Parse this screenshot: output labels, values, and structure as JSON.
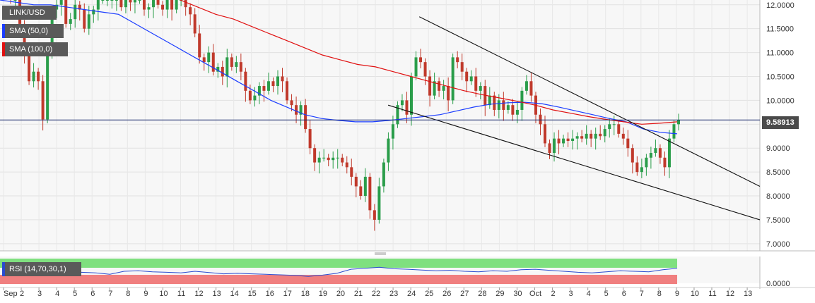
{
  "chart_data": [
    {
      "type": "candlestick",
      "symbol": "LINK/USD",
      "legend": [
        {
          "label": "LINK/USD",
          "color": "#5a5a5a"
        },
        {
          "label": "SMA (50,0)",
          "color": "#1a3cff"
        },
        {
          "label": "SMA (100,0)",
          "color": "#e01010"
        }
      ],
      "ylim": [
        6.85,
        12.1
      ],
      "yticks": [
        "12.0000",
        "11.5000",
        "11.0000",
        "10.5000",
        "10.0000",
        "9.5000",
        "9.0000",
        "8.5000",
        "8.0000",
        "7.5000",
        "7.0000"
      ],
      "ytick_values": [
        12.0,
        11.5,
        11.0,
        10.5,
        10.0,
        9.5,
        9.0,
        8.5,
        8.0,
        7.5,
        7.0
      ],
      "xticks": [
        "Sep",
        "2",
        "3",
        "4",
        "5",
        "6",
        "7",
        "8",
        "9",
        "10",
        "11",
        "12",
        "13",
        "14",
        "15",
        "16",
        "17",
        "18",
        "19",
        "20",
        "21",
        "22",
        "23",
        "24",
        "25",
        "26",
        "27",
        "28",
        "29",
        "30",
        "Oct",
        "2",
        "3",
        "4",
        "5",
        "6",
        "7",
        "8",
        "9",
        "10",
        "11",
        "12",
        "13"
      ],
      "current_price": 9.58913,
      "current_price_label": "9.58913",
      "close": [
        12.1,
        12.1,
        11.6,
        11.0,
        10.4,
        10.6,
        10.4,
        9.6,
        11.0,
        11.9,
        12.0,
        12.1,
        11.6,
        11.7,
        12.0,
        11.9,
        11.5,
        11.8,
        11.9,
        12.1,
        12.1,
        12.1,
        12.1,
        12.1,
        11.95,
        12.1,
        12.05,
        12.1,
        12.1,
        11.9,
        11.95,
        12.1,
        12.0,
        11.9,
        12.1,
        11.9,
        12.1,
        12.1,
        11.95,
        11.8,
        11.4,
        10.9,
        10.8,
        11.0,
        10.6,
        10.7,
        10.5,
        10.9,
        10.7,
        10.8,
        10.6,
        10.2,
        10.0,
        10.1,
        10.3,
        10.2,
        10.4,
        10.3,
        10.5,
        10.4,
        10.0,
        9.9,
        9.7,
        9.9,
        9.4,
        9.0,
        8.7,
        8.8,
        8.8,
        8.75,
        8.8,
        8.8,
        8.7,
        8.6,
        8.4,
        8.2,
        8.0,
        8.4,
        7.7,
        7.5,
        8.2,
        8.7,
        9.2,
        9.5,
        9.9,
        10.0,
        9.7,
        10.5,
        10.9,
        10.8,
        10.5,
        10.1,
        10.4,
        10.2,
        10.3,
        10.0,
        10.9,
        10.8,
        10.6,
        10.4,
        10.5,
        10.2,
        10.3,
        9.9,
        10.1,
        9.8,
        10.0,
        9.8,
        9.9,
        9.7,
        9.8,
        10.2,
        10.4,
        10.1,
        9.7,
        9.5,
        9.1,
        8.9,
        9.2,
        9.1,
        9.2,
        9.15,
        9.2,
        9.25,
        9.2,
        9.3,
        9.2,
        9.3,
        9.25,
        9.4,
        9.5,
        9.5,
        9.3,
        9.2,
        9.0,
        8.7,
        8.5,
        8.6,
        8.8,
        8.9,
        9.0,
        8.8,
        8.6,
        9.2,
        9.5,
        9.59
      ],
      "sma50": [
        12.1,
        12.05,
        12.0,
        12.0,
        11.95,
        11.9,
        11.85,
        11.8,
        11.6,
        11.4,
        11.2,
        11.0,
        10.8,
        10.6,
        10.4,
        10.2,
        10.0,
        9.85,
        9.7,
        9.62,
        9.58,
        9.55,
        9.55,
        9.58,
        9.62,
        9.66,
        9.7,
        9.78,
        9.86,
        9.92,
        9.95,
        9.96,
        9.93,
        9.86,
        9.78,
        9.7,
        9.62,
        9.55,
        9.4,
        9.33,
        9.3
      ],
      "sma100": [
        12.1,
        11.95,
        11.8,
        11.7,
        11.55,
        11.4,
        11.25,
        11.1,
        10.95,
        10.85,
        10.75,
        10.7,
        10.6,
        10.5,
        10.4,
        10.3,
        10.2,
        10.12,
        10.05,
        9.98,
        9.9,
        9.8,
        9.73,
        9.66,
        9.6,
        9.55,
        9.5,
        9.52,
        9.55
      ],
      "trendlines": [
        {
          "from": [
            "Sep 25",
            11.75
          ],
          "to": [
            "Oct 13",
            8.2
          ]
        },
        {
          "from": [
            "Sep 23",
            9.9
          ],
          "to": [
            "Oct 13",
            7.5
          ]
        }
      ]
    },
    {
      "type": "rsi",
      "label": "RSI (14,70,30,1)",
      "ytick_label": "0.0000",
      "values": [
        55,
        48,
        52,
        45,
        40,
        46,
        44,
        38,
        50,
        52,
        48,
        46,
        44,
        50,
        45,
        40,
        42,
        40,
        38,
        36,
        34,
        30,
        35,
        42,
        58,
        62,
        66,
        60,
        58,
        55,
        52,
        54,
        50,
        48,
        52,
        50,
        56,
        58,
        54,
        50,
        46,
        44,
        48,
        52,
        50,
        48,
        56,
        62
      ]
    }
  ]
}
